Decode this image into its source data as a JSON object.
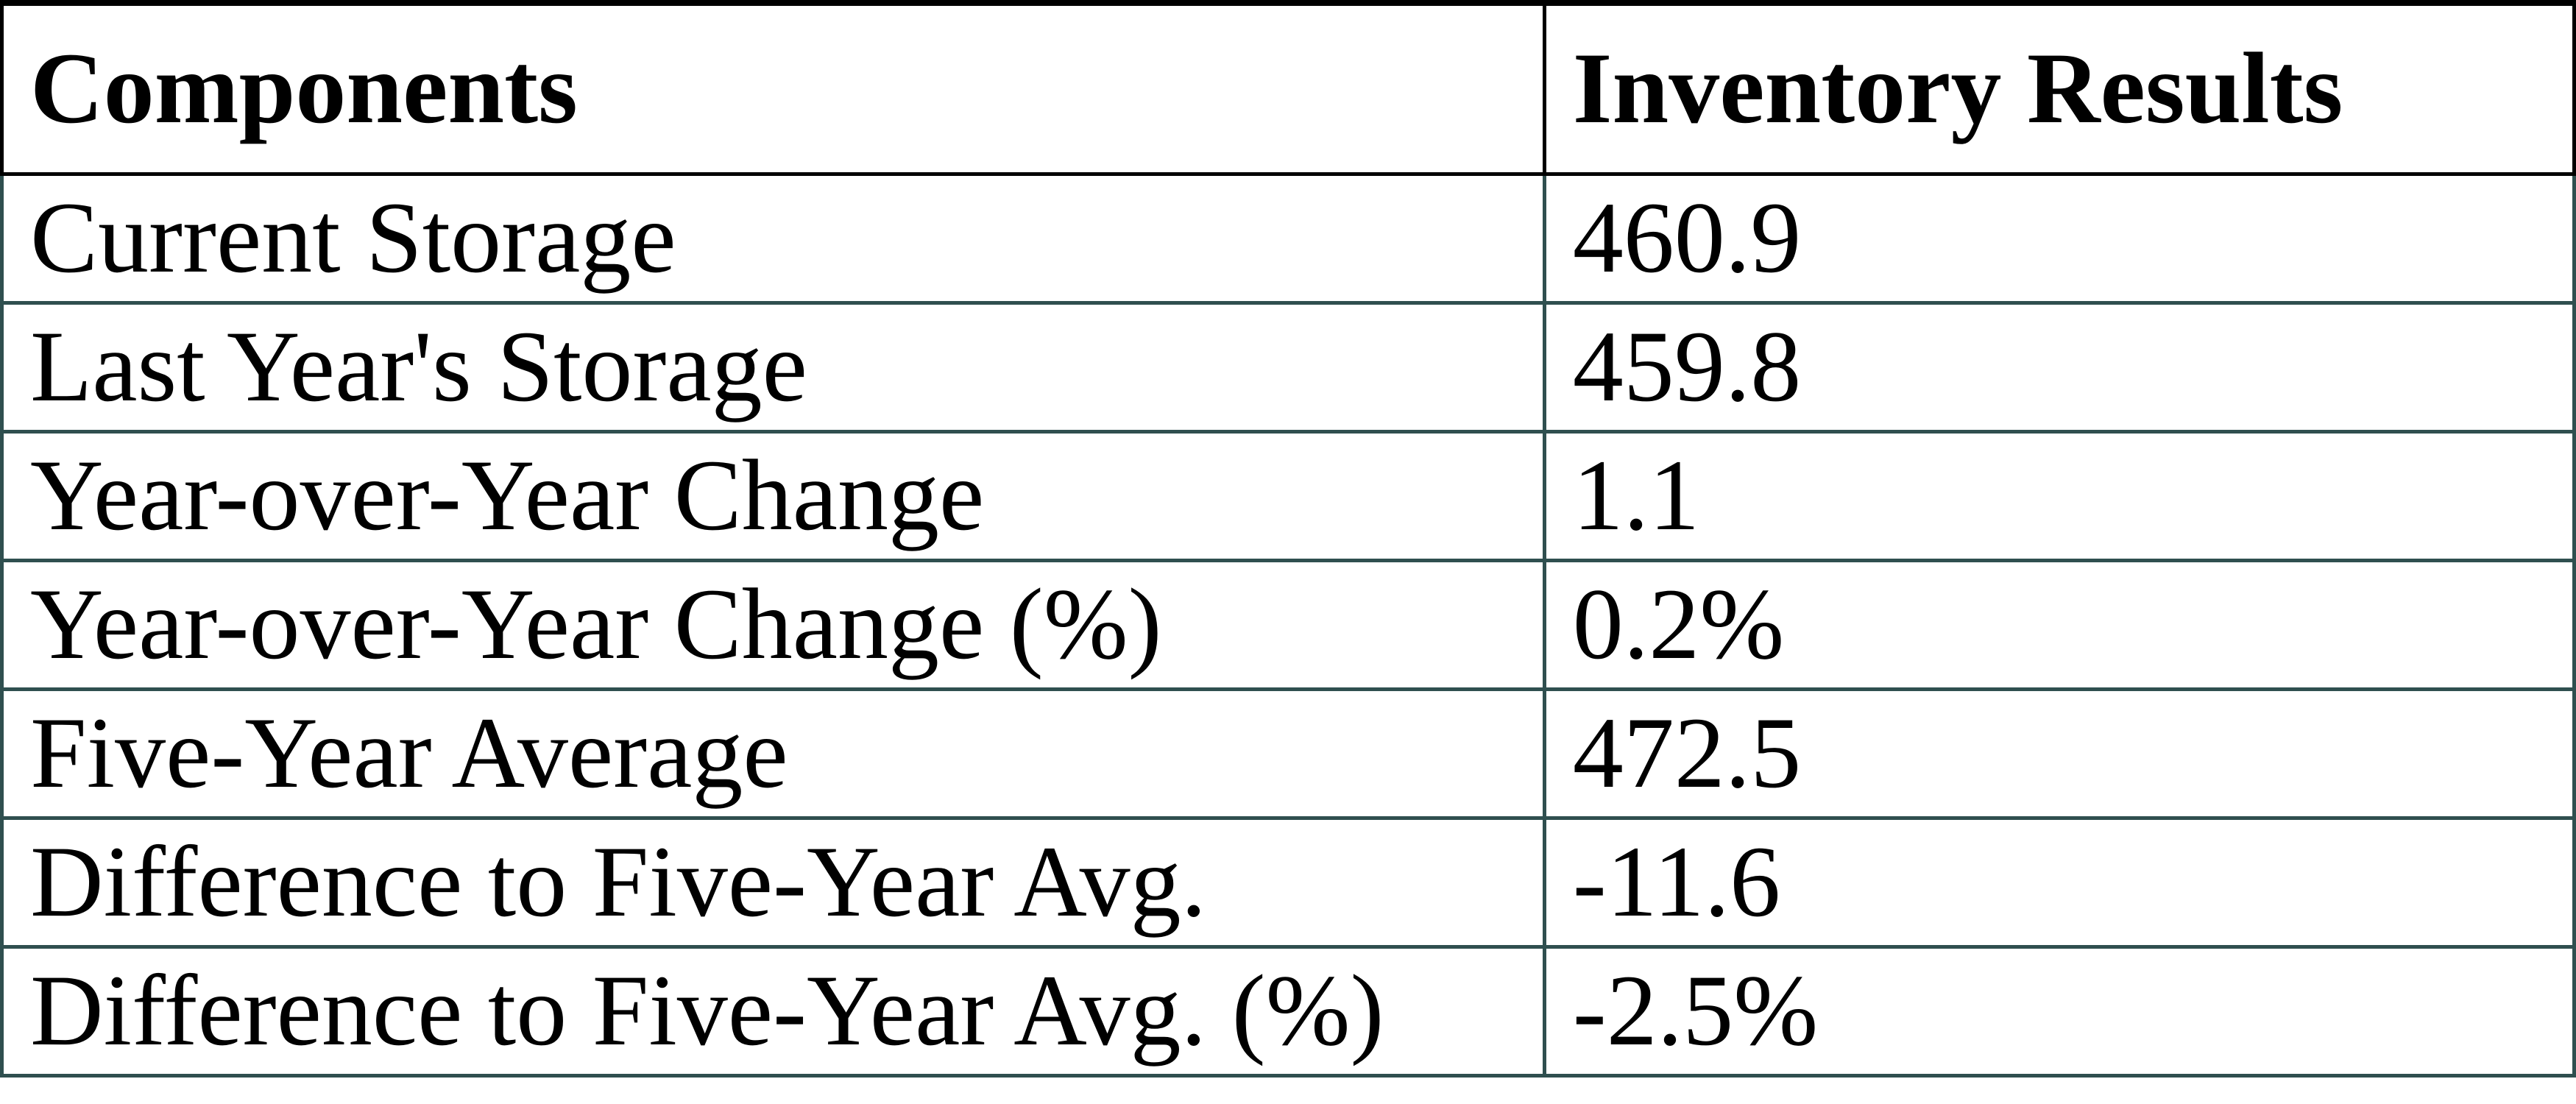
{
  "chart_data": {
    "type": "table",
    "title": "",
    "columns": [
      "Components",
      "Inventory Results"
    ],
    "rows": [
      [
        "Current Storage",
        "460.9"
      ],
      [
        "Last Year's Storage",
        "459.8"
      ],
      [
        "Year-over-Year Change",
        "1.1"
      ],
      [
        "Year-over-Year Change (%)",
        "0.2%"
      ],
      [
        "Five-Year Average",
        "472.5"
      ],
      [
        "Difference to Five-Year Avg.",
        "-11.6"
      ],
      [
        "Difference to Five-Year Avg. (%)",
        "-2.5%"
      ],
      [
        "",
        ""
      ]
    ],
    "values_numeric": [
      460.9,
      459.8,
      1.1,
      0.2,
      472.5,
      -11.6,
      -2.5
    ],
    "legend": "none",
    "layout": "two-column bordered table, header row bold"
  },
  "colors": {
    "header_border": "#000000",
    "body_border": "#2F4F4F",
    "text": "#000000",
    "background": "#FFFFFF"
  }
}
